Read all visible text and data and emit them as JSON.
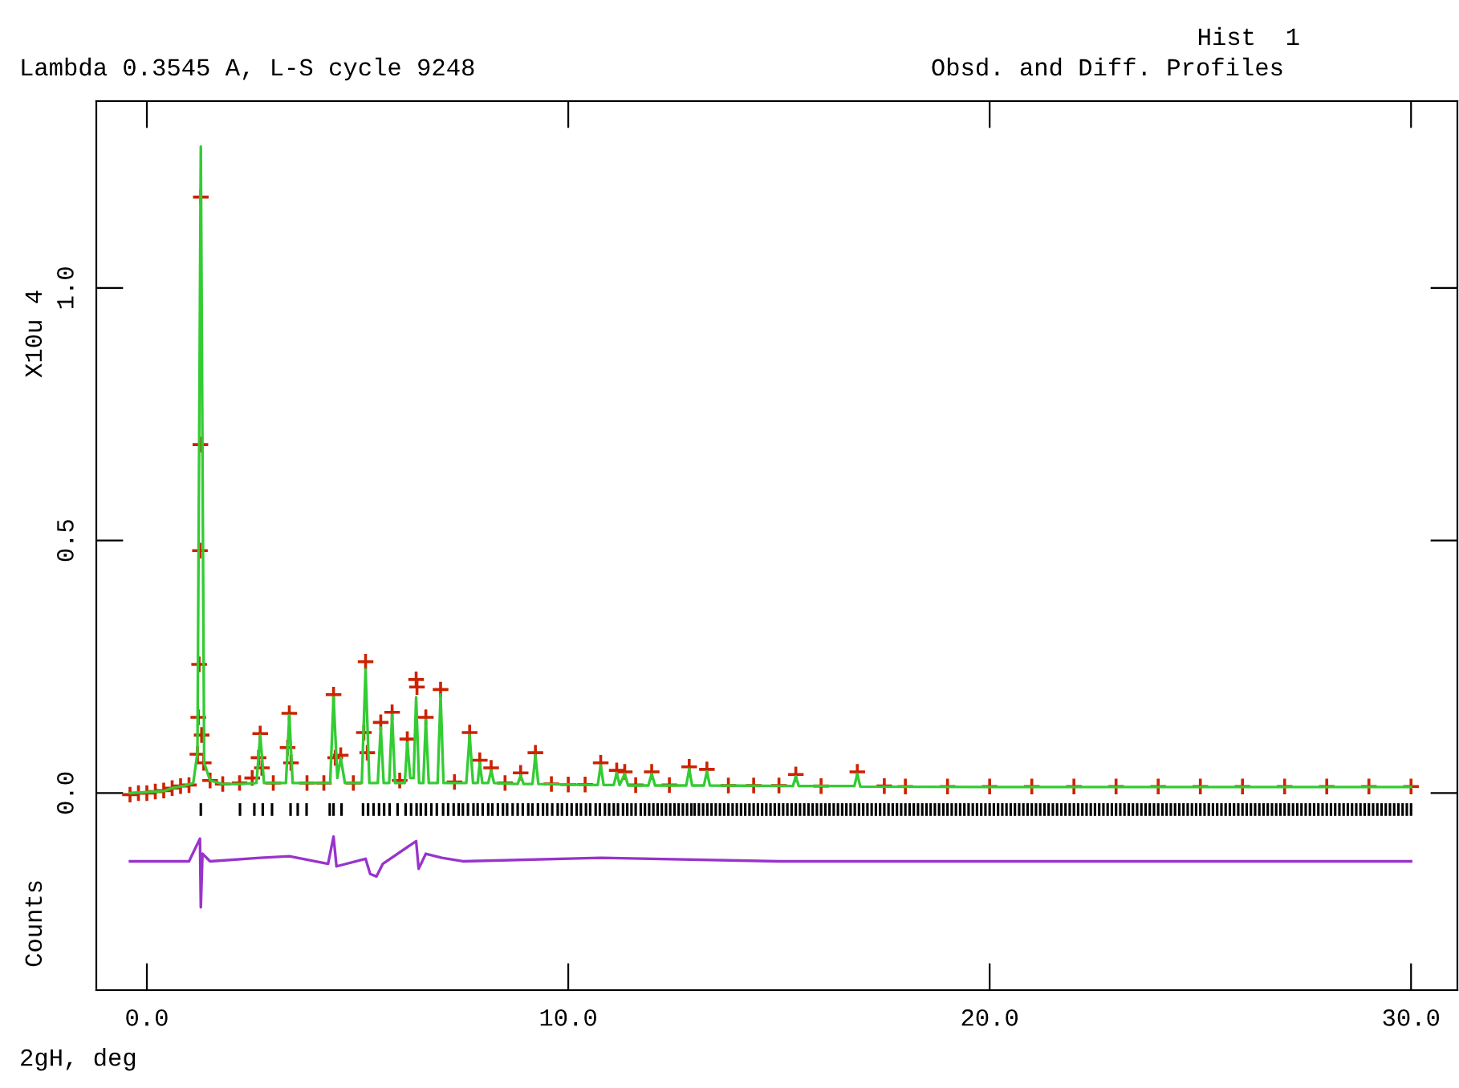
{
  "chart_data": {
    "type": "line",
    "title": "Obsd. and Diff. Profiles",
    "subtitle": "Hist  1",
    "xlabel": "2gH, deg",
    "ylabel": "Counts",
    "annotations": [
      "Lambda 0.3545 A, L-S cycle 9248",
      "X10u 4"
    ],
    "xlim": [
      -1.2,
      31.1
    ],
    "ylim": [
      -0.39,
      1.37
    ],
    "xticks": [
      {
        "value": 0,
        "label": "0.0"
      },
      {
        "value": 10,
        "label": "10.0"
      },
      {
        "value": 20,
        "label": "20.0"
      },
      {
        "value": 30,
        "label": "30.0"
      }
    ],
    "yticks": [
      {
        "value": 0,
        "label": "0.0"
      },
      {
        "value": 0.5,
        "label": "0.5"
      },
      {
        "value": 1,
        "label": "1.0"
      }
    ],
    "grid": false,
    "legend": false,
    "series": [
      {
        "type": "scatter",
        "marker": "cross",
        "color": "#cc2200",
        "x": [
          -0.4,
          -0.2,
          0.0,
          0.2,
          0.4,
          0.6,
          0.8,
          1.0,
          1.2,
          1.22,
          1.24,
          1.26,
          1.27,
          1.28,
          1.3,
          1.35,
          1.5,
          1.8,
          2.2,
          2.5,
          2.65,
          2.69,
          2.73,
          3.0,
          3.34,
          3.38,
          3.42,
          3.8,
          4.2,
          4.43,
          4.47,
          4.6,
          4.9,
          5.15,
          5.19,
          5.23,
          5.55,
          5.82,
          6.0,
          6.18,
          6.39,
          6.41,
          6.62,
          6.97,
          7.3,
          7.66,
          7.9,
          8.17,
          8.5,
          8.87,
          9.22,
          9.6,
          10.0,
          10.4,
          10.77,
          11.15,
          11.34,
          11.6,
          11.98,
          12.4,
          12.87,
          13.29,
          13.8,
          14.4,
          15.0,
          15.4,
          16.0,
          16.86,
          17.5,
          18.0,
          19.0,
          20.0,
          21.0,
          22.0,
          23.0,
          24.0,
          25.0,
          26.0,
          27.0,
          28.0,
          29.0,
          30.0
        ],
        "values": [
          -0.003,
          0.0,
          0.0,
          0.003,
          0.005,
          0.01,
          0.014,
          0.016,
          0.077,
          0.15,
          0.255,
          0.48,
          0.69,
          1.18,
          0.115,
          0.06,
          0.025,
          0.018,
          0.02,
          0.03,
          0.07,
          0.118,
          0.05,
          0.02,
          0.09,
          0.158,
          0.06,
          0.02,
          0.02,
          0.195,
          0.07,
          0.075,
          0.02,
          0.12,
          0.26,
          0.08,
          0.14,
          0.16,
          0.025,
          0.107,
          0.225,
          0.21,
          0.15,
          0.205,
          0.022,
          0.12,
          0.065,
          0.05,
          0.02,
          0.04,
          0.08,
          0.018,
          0.017,
          0.017,
          0.06,
          0.045,
          0.042,
          0.016,
          0.042,
          0.016,
          0.052,
          0.047,
          0.015,
          0.015,
          0.015,
          0.037,
          0.014,
          0.042,
          0.014,
          0.013,
          0.013,
          0.013,
          0.013,
          0.013,
          0.013,
          0.013,
          0.013,
          0.013,
          0.013,
          0.013,
          0.013,
          0.013
        ]
      },
      {
        "color": "#33cc33",
        "x": [
          -0.4,
          0.0,
          0.4,
          0.6,
          0.9,
          1.1,
          1.2,
          1.28,
          1.36,
          1.5,
          1.8,
          2.2,
          2.6,
          2.69,
          2.78,
          3.3,
          3.38,
          3.46,
          4.35,
          4.43,
          4.52,
          4.6,
          4.7,
          5.1,
          5.19,
          5.28,
          5.48,
          5.55,
          5.62,
          5.75,
          5.82,
          5.89,
          6.12,
          6.18,
          6.25,
          6.33,
          6.39,
          6.46,
          6.56,
          6.62,
          6.69,
          6.9,
          6.97,
          7.04,
          7.58,
          7.66,
          7.74,
          7.85,
          7.9,
          7.96,
          8.1,
          8.17,
          8.24,
          8.8,
          8.87,
          8.94,
          9.15,
          9.22,
          9.29,
          10.7,
          10.77,
          10.84,
          11.08,
          11.15,
          11.22,
          11.34,
          11.42,
          11.9,
          11.98,
          12.06,
          12.8,
          12.87,
          12.94,
          13.22,
          13.29,
          13.36,
          15.33,
          15.4,
          15.47,
          16.79,
          16.86,
          16.93,
          20.0,
          25.0,
          30.0
        ],
        "values": [
          0.0,
          0.002,
          0.004,
          0.01,
          0.015,
          0.02,
          0.08,
          1.28,
          0.06,
          0.025,
          0.018,
          0.018,
          0.02,
          0.115,
          0.02,
          0.02,
          0.154,
          0.02,
          0.02,
          0.19,
          0.03,
          0.07,
          0.02,
          0.02,
          0.245,
          0.02,
          0.02,
          0.13,
          0.02,
          0.02,
          0.155,
          0.02,
          0.02,
          0.1,
          0.03,
          0.03,
          0.19,
          0.02,
          0.02,
          0.145,
          0.02,
          0.02,
          0.195,
          0.02,
          0.02,
          0.115,
          0.02,
          0.02,
          0.06,
          0.02,
          0.02,
          0.045,
          0.02,
          0.018,
          0.035,
          0.018,
          0.018,
          0.075,
          0.018,
          0.016,
          0.055,
          0.016,
          0.016,
          0.04,
          0.016,
          0.038,
          0.015,
          0.015,
          0.038,
          0.015,
          0.015,
          0.048,
          0.015,
          0.015,
          0.043,
          0.015,
          0.014,
          0.033,
          0.014,
          0.014,
          0.038,
          0.013,
          0.012,
          0.012,
          0.012
        ]
      },
      {
        "type": "bar",
        "color": "#000000",
        "x": [
          1.28,
          2.21,
          2.55,
          2.75,
          2.97,
          3.41,
          3.58,
          3.79,
          4.34,
          4.43,
          4.62,
          5.13,
          5.25,
          5.38,
          5.51,
          5.63,
          5.76,
          5.95,
          6.14,
          6.27,
          6.4,
          6.5,
          6.62,
          6.75,
          6.88,
          7.03,
          7.15,
          7.28,
          7.4,
          7.5,
          7.62,
          7.75,
          7.85,
          7.97,
          8.1,
          8.2,
          8.33,
          8.45,
          8.55,
          8.68,
          8.8,
          8.92,
          9.05,
          9.15,
          9.28,
          9.4,
          9.5,
          9.62,
          9.75,
          9.85,
          9.97,
          10.08,
          10.2,
          10.3,
          10.42,
          10.52,
          10.65,
          10.75,
          10.87,
          10.97,
          11.08,
          11.18,
          11.3,
          11.4,
          11.5,
          11.6,
          11.72,
          11.82,
          11.92,
          12.02,
          12.12,
          12.22,
          12.32,
          12.42,
          12.52,
          12.62,
          12.72,
          12.82,
          12.92,
          13.0,
          13.1,
          13.2,
          13.3,
          13.4,
          13.5,
          13.6,
          13.7,
          13.8,
          13.9,
          14.0,
          14.1,
          14.2,
          14.3,
          14.4,
          14.5,
          14.6,
          14.7,
          14.8,
          14.9,
          15.0,
          15.1,
          15.2,
          15.3,
          15.4,
          15.5,
          15.6,
          15.7,
          15.8,
          15.9,
          16.0,
          16.1,
          16.2,
          16.3,
          16.4,
          16.5,
          16.6,
          16.7,
          16.8,
          16.9,
          17.0,
          17.1,
          17.2,
          17.3,
          17.4,
          17.5,
          17.6,
          17.7,
          17.8,
          17.9,
          18.0,
          18.1,
          18.2,
          18.3,
          18.4,
          18.5,
          18.6,
          18.7,
          18.8,
          18.9,
          19.0,
          19.1,
          19.2,
          19.3,
          19.4,
          19.5,
          19.6,
          19.7,
          19.8,
          19.9,
          20.0,
          20.1,
          20.2,
          20.3,
          20.4,
          20.5,
          20.6,
          20.7,
          20.8,
          20.9,
          21.0,
          21.1,
          21.2,
          21.3,
          21.4,
          21.5,
          21.6,
          21.7,
          21.8,
          21.9,
          22.0,
          22.1,
          22.2,
          22.3,
          22.4,
          22.5,
          22.6,
          22.7,
          22.8,
          22.9,
          23.0,
          23.1,
          23.2,
          23.3,
          23.4,
          23.5,
          23.6,
          23.7,
          23.8,
          23.9,
          24.0,
          24.1,
          24.2,
          24.3,
          24.4,
          24.5,
          24.6,
          24.7,
          24.8,
          24.9,
          25.0,
          25.1,
          25.2,
          25.3,
          25.4,
          25.5,
          25.6,
          25.7,
          25.8,
          25.9,
          26.0,
          26.1,
          26.2,
          26.3,
          26.4,
          26.5,
          26.6,
          26.7,
          26.8,
          26.9,
          27.0,
          27.1,
          27.2,
          27.3,
          27.4,
          27.5,
          27.6,
          27.7,
          27.8,
          27.9,
          28.0,
          28.1,
          28.2,
          28.3,
          28.4,
          28.5,
          28.6,
          28.7,
          28.8,
          28.9,
          29.0,
          29.1,
          29.2,
          29.3,
          29.4,
          29.5,
          29.6,
          29.7,
          29.8,
          29.9,
          30.0
        ],
        "values": [
          0.025,
          0.025,
          0.025,
          0.025,
          0.025,
          0.025,
          0.025,
          0.025,
          0.025,
          0.025,
          0.025,
          0.025,
          0.025,
          0.025,
          0.025,
          0.025,
          0.025,
          0.025,
          0.025,
          0.025,
          0.025,
          0.025,
          0.025,
          0.025,
          0.025,
          0.025,
          0.025,
          0.025,
          0.025,
          0.025,
          0.025,
          0.025,
          0.025,
          0.025,
          0.025,
          0.025,
          0.025,
          0.025,
          0.025,
          0.025,
          0.025,
          0.025,
          0.025,
          0.025,
          0.025,
          0.025,
          0.025,
          0.025,
          0.025,
          0.025,
          0.025,
          0.025,
          0.025,
          0.025,
          0.025,
          0.025,
          0.025,
          0.025,
          0.025,
          0.025,
          0.025,
          0.025,
          0.025,
          0.025,
          0.025,
          0.025,
          0.025,
          0.025,
          0.025,
          0.025,
          0.025,
          0.025,
          0.025,
          0.025,
          0.025,
          0.025,
          0.025,
          0.025,
          0.025,
          0.025,
          0.025,
          0.025,
          0.025,
          0.025,
          0.025,
          0.025,
          0.025,
          0.025,
          0.025,
          0.025,
          0.025,
          0.025,
          0.025,
          0.025,
          0.025,
          0.025,
          0.025,
          0.025,
          0.025,
          0.025,
          0.025,
          0.025,
          0.025,
          0.025,
          0.025,
          0.025,
          0.025,
          0.025,
          0.025,
          0.025,
          0.025,
          0.025,
          0.025,
          0.025,
          0.025,
          0.025,
          0.025,
          0.025,
          0.025,
          0.025,
          0.025,
          0.025,
          0.025,
          0.025,
          0.025,
          0.025,
          0.025,
          0.025,
          0.025,
          0.025,
          0.025,
          0.025,
          0.025,
          0.025,
          0.025,
          0.025,
          0.025,
          0.025,
          0.025,
          0.025,
          0.025,
          0.025,
          0.025,
          0.025,
          0.025,
          0.025,
          0.025,
          0.025,
          0.025,
          0.025,
          0.025,
          0.025,
          0.025,
          0.025,
          0.025,
          0.025,
          0.025,
          0.025,
          0.025,
          0.025,
          0.025,
          0.025,
          0.025,
          0.025,
          0.025,
          0.025,
          0.025,
          0.025,
          0.025,
          0.025,
          0.025,
          0.025,
          0.025,
          0.025,
          0.025,
          0.025,
          0.025,
          0.025,
          0.025,
          0.025,
          0.025,
          0.025,
          0.025,
          0.025,
          0.025,
          0.025,
          0.025,
          0.025,
          0.025,
          0.025,
          0.025,
          0.025,
          0.025,
          0.025,
          0.025,
          0.025,
          0.025,
          0.025,
          0.025,
          0.025,
          0.025,
          0.025,
          0.025,
          0.025,
          0.025,
          0.025,
          0.025,
          0.025,
          0.025,
          0.025,
          0.025,
          0.025,
          0.025,
          0.025,
          0.025,
          0.025,
          0.025,
          0.025,
          0.025,
          0.025,
          0.025,
          0.025,
          0.025,
          0.025,
          0.025,
          0.025,
          0.025,
          0.025,
          0.025,
          0.025,
          0.025,
          0.025,
          0.025,
          0.025,
          0.025,
          0.025,
          0.025,
          0.025,
          0.025,
          0.025,
          0.025,
          0.025,
          0.025,
          0.025,
          0.025,
          0.025,
          0.025,
          0.025,
          0.025,
          0.025
        ],
        "base": [
          -0.045,
          -0.045,
          -0.045,
          -0.045,
          -0.045,
          -0.045,
          -0.045,
          -0.045,
          -0.045,
          -0.045,
          -0.045,
          -0.045,
          -0.045,
          -0.045,
          -0.045,
          -0.045,
          -0.045,
          -0.045,
          -0.045,
          -0.045,
          -0.045,
          -0.045,
          -0.045,
          -0.045,
          -0.045,
          -0.045,
          -0.045,
          -0.045,
          -0.045,
          -0.045,
          -0.045,
          -0.045,
          -0.045,
          -0.045,
          -0.045,
          -0.045,
          -0.045,
          -0.045,
          -0.045,
          -0.045,
          -0.045,
          -0.045,
          -0.045,
          -0.045,
          -0.045,
          -0.045,
          -0.045,
          -0.045,
          -0.045,
          -0.045,
          -0.045,
          -0.045,
          -0.045,
          -0.045,
          -0.045,
          -0.045,
          -0.045,
          -0.045,
          -0.045,
          -0.045,
          -0.045,
          -0.045,
          -0.045,
          -0.045,
          -0.045,
          -0.045,
          -0.045,
          -0.045,
          -0.045,
          -0.045,
          -0.045,
          -0.045,
          -0.045,
          -0.045,
          -0.045,
          -0.045,
          -0.045,
          -0.045,
          -0.045,
          -0.045,
          -0.045,
          -0.045,
          -0.045,
          -0.045,
          -0.045,
          -0.045,
          -0.045,
          -0.045,
          -0.045,
          -0.045,
          -0.045,
          -0.045,
          -0.045,
          -0.045,
          -0.045,
          -0.045,
          -0.045,
          -0.045,
          -0.045,
          -0.045,
          -0.045,
          -0.045,
          -0.045,
          -0.045,
          -0.045,
          -0.045,
          -0.045,
          -0.045,
          -0.045,
          -0.045,
          -0.045,
          -0.045,
          -0.045,
          -0.045,
          -0.045,
          -0.045,
          -0.045,
          -0.045,
          -0.045,
          -0.045,
          -0.045,
          -0.045,
          -0.045,
          -0.045,
          -0.045,
          -0.045,
          -0.045,
          -0.045,
          -0.045,
          -0.045,
          -0.045,
          -0.045,
          -0.045,
          -0.045,
          -0.045,
          -0.045,
          -0.045,
          -0.045,
          -0.045,
          -0.045,
          -0.045,
          -0.045,
          -0.045,
          -0.045,
          -0.045,
          -0.045,
          -0.045,
          -0.045,
          -0.045,
          -0.045,
          -0.045,
          -0.045,
          -0.045,
          -0.045,
          -0.045,
          -0.045,
          -0.045,
          -0.045,
          -0.045,
          -0.045,
          -0.045,
          -0.045,
          -0.045,
          -0.045,
          -0.045,
          -0.045,
          -0.045,
          -0.045,
          -0.045,
          -0.045,
          -0.045,
          -0.045,
          -0.045,
          -0.045,
          -0.045,
          -0.045,
          -0.045,
          -0.045,
          -0.045,
          -0.045,
          -0.045,
          -0.045,
          -0.045,
          -0.045,
          -0.045,
          -0.045,
          -0.045,
          -0.045,
          -0.045,
          -0.045,
          -0.045,
          -0.045,
          -0.045,
          -0.045,
          -0.045,
          -0.045,
          -0.045,
          -0.045,
          -0.045,
          -0.045,
          -0.045,
          -0.045,
          -0.045,
          -0.045,
          -0.045,
          -0.045,
          -0.045,
          -0.045,
          -0.045,
          -0.045,
          -0.045,
          -0.045,
          -0.045,
          -0.045,
          -0.045,
          -0.045,
          -0.045,
          -0.045,
          -0.045,
          -0.045,
          -0.045,
          -0.045,
          -0.045,
          -0.045,
          -0.045,
          -0.045,
          -0.045,
          -0.045,
          -0.045,
          -0.045,
          -0.045,
          -0.045,
          -0.045,
          -0.045,
          -0.045,
          -0.045,
          -0.045,
          -0.045,
          -0.045,
          -0.045,
          -0.045,
          -0.045,
          -0.045,
          -0.045,
          -0.045,
          -0.045,
          -0.045,
          -0.045,
          -0.045,
          -0.045
        ]
      },
      {
        "color": "#9933cc",
        "x": [
          -0.4,
          1.0,
          1.26,
          1.28,
          1.32,
          1.5,
          2.69,
          3.38,
          4.3,
          4.43,
          4.5,
          5.19,
          5.3,
          5.45,
          5.6,
          6.39,
          6.45,
          6.62,
          7.0,
          7.5,
          10.77,
          15.0,
          20.0,
          30.0
        ],
        "values": [
          -0.135,
          -0.135,
          -0.09,
          -0.226,
          -0.12,
          -0.135,
          -0.128,
          -0.125,
          -0.14,
          -0.086,
          -0.145,
          -0.13,
          -0.16,
          -0.165,
          -0.14,
          -0.095,
          -0.15,
          -0.12,
          -0.128,
          -0.135,
          -0.128,
          -0.135,
          -0.135,
          -0.135
        ]
      }
    ]
  }
}
